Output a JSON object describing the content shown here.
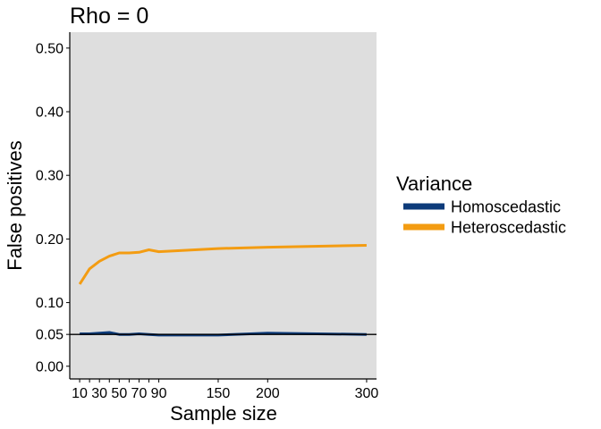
{
  "chart_data": {
    "type": "line",
    "title": "Rho = 0",
    "xlabel": "Sample size",
    "ylabel": "False positives",
    "xlim": [
      0,
      310
    ],
    "ylim": [
      -0.02,
      0.525
    ],
    "xticks": [
      10,
      20,
      30,
      40,
      50,
      60,
      70,
      80,
      90,
      150,
      200,
      300
    ],
    "xtick_labels": [
      "10",
      "",
      "30",
      "",
      "50",
      "",
      "70",
      "",
      "90",
      "150",
      "200",
      "300"
    ],
    "yticks": [
      0.0,
      0.05,
      0.1,
      0.2,
      0.3,
      0.4,
      0.5
    ],
    "ytick_labels": [
      "0.00",
      "0.05",
      "0.10",
      "0.20",
      "0.30",
      "0.40",
      "0.50"
    ],
    "reference_line": 0.05,
    "reference_color": "#000000",
    "panel_background": "#dedede",
    "grid": false,
    "legend": {
      "title": "Variance",
      "position": "right"
    },
    "x": [
      10,
      20,
      30,
      40,
      50,
      60,
      70,
      80,
      90,
      150,
      200,
      300
    ],
    "series": [
      {
        "name": "Homoscedastic",
        "color": "#0d3b7a",
        "values": [
          0.051,
          0.051,
          0.052,
          0.053,
          0.05,
          0.05,
          0.051,
          0.05,
          0.049,
          0.049,
          0.052,
          0.05
        ]
      },
      {
        "name": "Heteroscedastic",
        "color": "#f39c12",
        "values": [
          0.129,
          0.153,
          0.165,
          0.173,
          0.178,
          0.178,
          0.179,
          0.183,
          0.18,
          0.185,
          0.187,
          0.19
        ]
      }
    ]
  }
}
